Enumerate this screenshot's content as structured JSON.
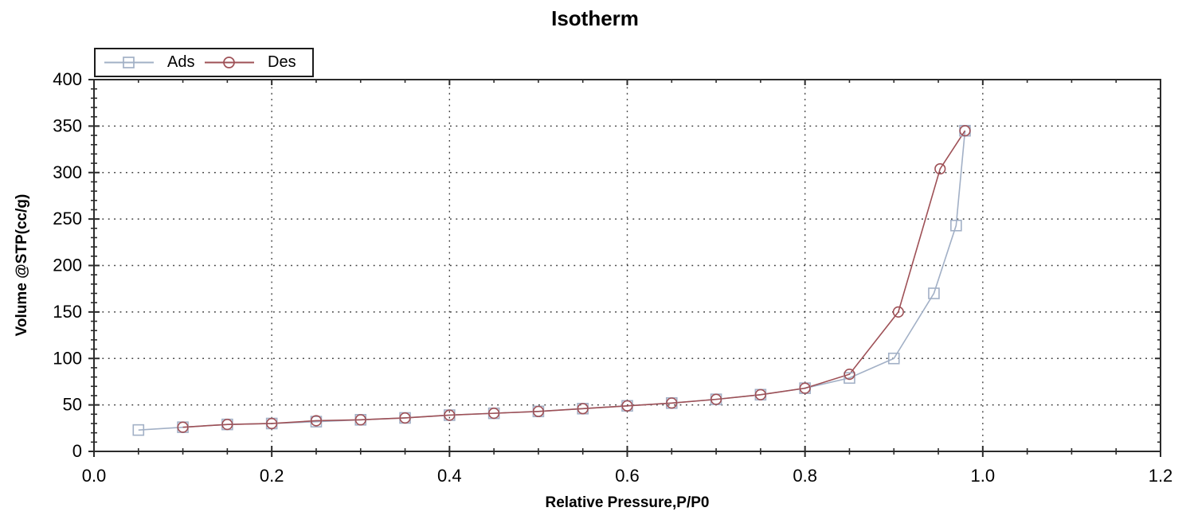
{
  "chart_data": {
    "type": "line",
    "title": "Isotherm",
    "xlabel": "Relative Pressure,P/P0",
    "ylabel": "Volume @STP(cc/g)",
    "xlim": [
      0.0,
      1.2
    ],
    "ylim": [
      0,
      400
    ],
    "x_major_tick": 0.2,
    "x_minor_tick": 0.05,
    "y_major_tick": 50,
    "y_minor_tick": 10,
    "xtick_labels": [
      "0.0",
      "0.2",
      "0.4",
      "0.6",
      "0.8",
      "1.0",
      "1.2"
    ],
    "ytick_labels": [
      "0",
      "50",
      "100",
      "150",
      "200",
      "250",
      "300",
      "350",
      "400"
    ],
    "grid": {
      "style": "dotted",
      "color": "#3c3c3c",
      "on_major_ticks": true
    },
    "axis_color": "#2b2b2b",
    "text_color": "#000000",
    "legend_position": "top-left",
    "series": [
      {
        "name": "Ads",
        "marker": "square",
        "color": "#a2b0c6",
        "points": [
          [
            0.05,
            23
          ],
          [
            0.1,
            26
          ],
          [
            0.15,
            29
          ],
          [
            0.2,
            30
          ],
          [
            0.25,
            32
          ],
          [
            0.3,
            34
          ],
          [
            0.35,
            36
          ],
          [
            0.4,
            39
          ],
          [
            0.45,
            41
          ],
          [
            0.5,
            43
          ],
          [
            0.55,
            46
          ],
          [
            0.6,
            49
          ],
          [
            0.65,
            52
          ],
          [
            0.7,
            56
          ],
          [
            0.75,
            61
          ],
          [
            0.8,
            68
          ],
          [
            0.85,
            79
          ],
          [
            0.9,
            100
          ],
          [
            0.945,
            170
          ],
          [
            0.97,
            243
          ],
          [
            0.98,
            345
          ]
        ]
      },
      {
        "name": "Des",
        "marker": "circle",
        "color": "#9e5056",
        "points": [
          [
            0.98,
            345
          ],
          [
            0.952,
            304
          ],
          [
            0.905,
            150
          ],
          [
            0.85,
            83
          ],
          [
            0.8,
            68
          ],
          [
            0.75,
            61
          ],
          [
            0.7,
            56
          ],
          [
            0.65,
            52
          ],
          [
            0.6,
            49
          ],
          [
            0.55,
            46
          ],
          [
            0.5,
            43
          ],
          [
            0.45,
            41
          ],
          [
            0.4,
            39
          ],
          [
            0.35,
            36
          ],
          [
            0.3,
            34
          ],
          [
            0.25,
            33
          ],
          [
            0.2,
            30
          ],
          [
            0.15,
            29
          ],
          [
            0.1,
            26
          ]
        ]
      }
    ]
  }
}
